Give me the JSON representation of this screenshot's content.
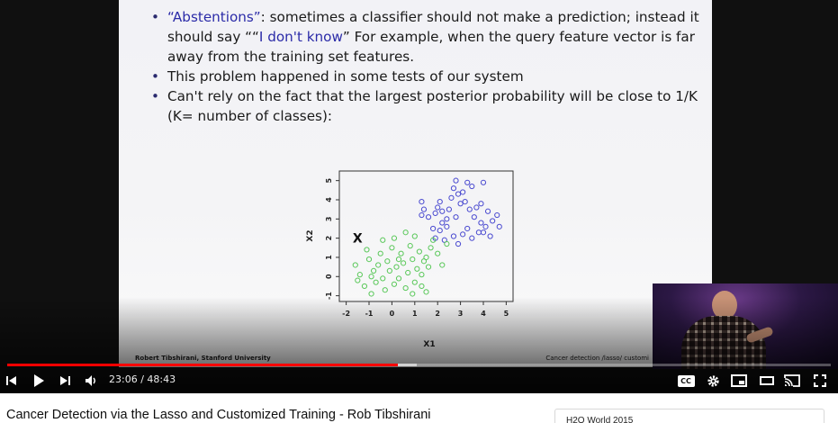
{
  "slide": {
    "bullets": [
      {
        "quote_open": "“",
        "highlight": "Abstentions",
        "quote_close": "”",
        "rest": ": sometimes a classifier should not make a prediction; instead it should say ““",
        "highlight2": "I don't know",
        "rest2": "” For example, when the query feature vector is far away from the training set features."
      },
      {
        "text": "This problem happened in some tests of our system"
      },
      {
        "text": "Can't rely on the fact that the largest posterior probability will be close to 1/K (K= number of classes):"
      }
    ],
    "footer_left": "Robert Tibshirani, Stanford University",
    "footer_right": "Cancer detection /lasso/ customi"
  },
  "chart_data": {
    "type": "scatter",
    "xlabel": "X1",
    "ylabel": "X2",
    "xlim": [
      -2.3,
      5.3
    ],
    "ylim": [
      -1.3,
      5.5
    ],
    "xticks": [
      "-2",
      "-1",
      "0",
      "1",
      "2",
      "3",
      "4",
      "5"
    ],
    "yticks": [
      "-1",
      "0",
      "1",
      "2",
      "3",
      "4",
      "5"
    ],
    "query_marker": {
      "label": "X",
      "x": -1.5,
      "y": 2.0
    },
    "series": [
      {
        "color": "#4a4ad0",
        "points": [
          [
            1.3,
            3.9
          ],
          [
            1.4,
            3.5
          ],
          [
            1.3,
            3.2
          ],
          [
            1.6,
            3.1
          ],
          [
            1.9,
            3.3
          ],
          [
            2.0,
            3.6
          ],
          [
            2.1,
            3.9
          ],
          [
            2.2,
            3.4
          ],
          [
            2.4,
            3.0
          ],
          [
            2.6,
            4.1
          ],
          [
            2.7,
            4.6
          ],
          [
            2.9,
            4.3
          ],
          [
            3.0,
            3.8
          ],
          [
            3.1,
            4.4
          ],
          [
            3.3,
            4.9
          ],
          [
            2.8,
            5.0
          ],
          [
            3.5,
            4.7
          ],
          [
            3.7,
            3.6
          ],
          [
            3.9,
            3.8
          ],
          [
            4.0,
            4.9
          ],
          [
            4.2,
            3.4
          ],
          [
            4.4,
            2.9
          ],
          [
            4.6,
            3.2
          ],
          [
            4.1,
            2.6
          ],
          [
            3.8,
            2.3
          ],
          [
            3.5,
            2.0
          ],
          [
            3.3,
            2.5
          ],
          [
            3.1,
            2.2
          ],
          [
            2.9,
            1.7
          ],
          [
            2.7,
            2.1
          ],
          [
            2.4,
            2.6
          ],
          [
            2.1,
            2.4
          ],
          [
            1.9,
            2.0
          ],
          [
            2.2,
            2.8
          ],
          [
            3.6,
            3.1
          ],
          [
            3.9,
            2.8
          ],
          [
            4.3,
            2.1
          ],
          [
            4.7,
            2.6
          ],
          [
            3.4,
            3.5
          ],
          [
            2.8,
            3.1
          ],
          [
            2.5,
            3.5
          ],
          [
            1.8,
            2.5
          ],
          [
            4.0,
            2.3
          ],
          [
            3.2,
            3.9
          ],
          [
            2.3,
            1.9
          ]
        ]
      },
      {
        "color": "#5ac85a",
        "points": [
          [
            -1.6,
            0.6
          ],
          [
            -1.4,
            0.1
          ],
          [
            -1.2,
            -0.5
          ],
          [
            -1.0,
            0.9
          ],
          [
            -0.9,
            -0.9
          ],
          [
            -0.8,
            0.3
          ],
          [
            -0.7,
            -0.3
          ],
          [
            -0.6,
            0.6
          ],
          [
            -0.5,
            1.2
          ],
          [
            -0.4,
            -0.1
          ],
          [
            -0.3,
            -0.7
          ],
          [
            -0.2,
            0.8
          ],
          [
            -0.1,
            0.3
          ],
          [
            0.0,
            1.5
          ],
          [
            0.1,
            -0.4
          ],
          [
            0.2,
            0.5
          ],
          [
            0.3,
            -0.1
          ],
          [
            0.4,
            1.2
          ],
          [
            0.5,
            0.7
          ],
          [
            0.6,
            -0.6
          ],
          [
            0.7,
            0.2
          ],
          [
            0.8,
            1.6
          ],
          [
            0.9,
            0.9
          ],
          [
            1.0,
            -0.3
          ],
          [
            1.1,
            0.4
          ],
          [
            1.2,
            1.3
          ],
          [
            1.3,
            0.1
          ],
          [
            1.4,
            0.8
          ],
          [
            1.5,
            -0.8
          ],
          [
            1.6,
            0.5
          ],
          [
            1.8,
            1.9
          ],
          [
            2.0,
            1.2
          ],
          [
            2.2,
            0.6
          ],
          [
            1.0,
            2.1
          ],
          [
            0.6,
            2.3
          ],
          [
            0.1,
            2.0
          ],
          [
            -0.4,
            1.9
          ],
          [
            -1.1,
            1.4
          ],
          [
            -1.5,
            -0.2
          ],
          [
            -0.9,
            0.0
          ],
          [
            0.3,
            0.9
          ],
          [
            1.3,
            -0.5
          ],
          [
            0.9,
            -0.9
          ],
          [
            1.7,
            1.5
          ],
          [
            2.4,
            1.7
          ],
          [
            1.5,
            1.0
          ]
        ]
      }
    ]
  },
  "player": {
    "time_current": "23:06",
    "time_separator": " / ",
    "time_total": "48:43",
    "played_fraction": 0.474,
    "buffered_fraction": 0.497,
    "cc_label": "CC"
  },
  "video": {
    "title": "Cancer Detection via the Lasso and Customized Training - Rob Tibshirani",
    "side_card_title": "H2O World 2015"
  },
  "icons": {
    "prev": "skip-previous-icon",
    "play": "play-icon",
    "next": "skip-next-icon",
    "volume": "volume-icon",
    "settings": "gear-icon",
    "miniplayer": "miniplayer-icon",
    "theater": "theater-mode-icon",
    "cast": "cast-icon",
    "fullscreen": "fullscreen-icon"
  }
}
